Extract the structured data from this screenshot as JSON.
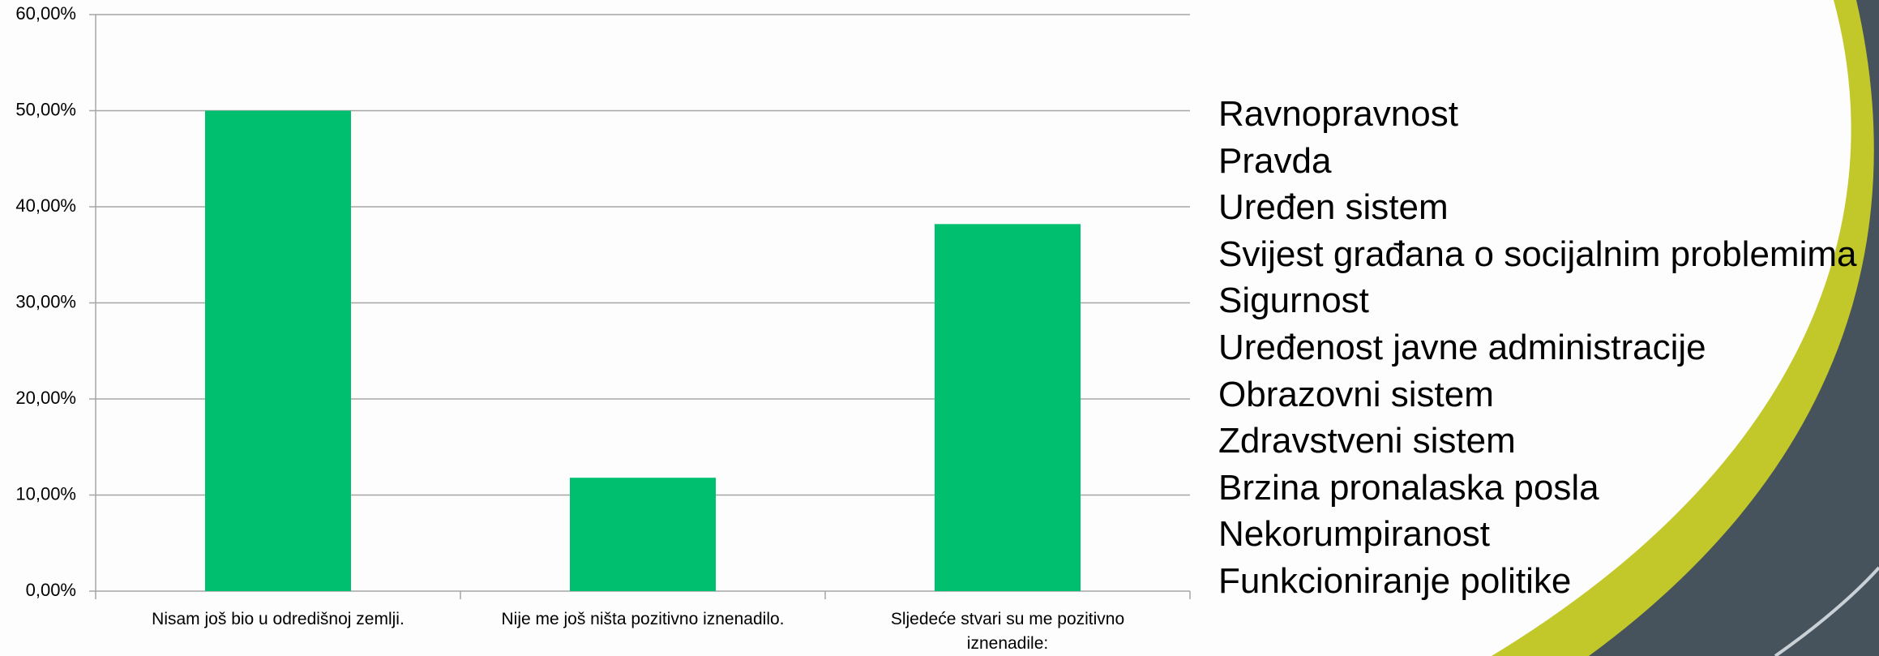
{
  "chart_data": {
    "type": "bar",
    "categories": [
      "Nisam još bio u odredišnoj zemlji.",
      "Nije me još ništa pozitivno iznenadilo.",
      "Sljedeće stvari su me pozitivno iznenadile:"
    ],
    "values": [
      50,
      11.8,
      38.2
    ],
    "color": "#00bf6f",
    "ylim": [
      0,
      60
    ],
    "yticks": [
      {
        "value": 0,
        "label": "0,00%"
      },
      {
        "value": 10,
        "label": "10,00%"
      },
      {
        "value": 20,
        "label": "20,00%"
      },
      {
        "value": 30,
        "label": "30,00%"
      },
      {
        "value": 40,
        "label": "40,00%"
      },
      {
        "value": 50,
        "label": "50,00%"
      },
      {
        "value": 60,
        "label": "60,00%"
      }
    ],
    "grid": true
  },
  "list": [
    "Ravnopravnost",
    "Pravda",
    "Uređen sistem",
    "Svijest građana o socijalnim problemima",
    "Sigurnost",
    "Uređenost javne administracije",
    "Obrazovni sistem",
    "Zdravstveni sistem",
    "Brzina pronalaska posla",
    "Nekorumpiranost",
    "Funkcioniranje politike"
  ]
}
